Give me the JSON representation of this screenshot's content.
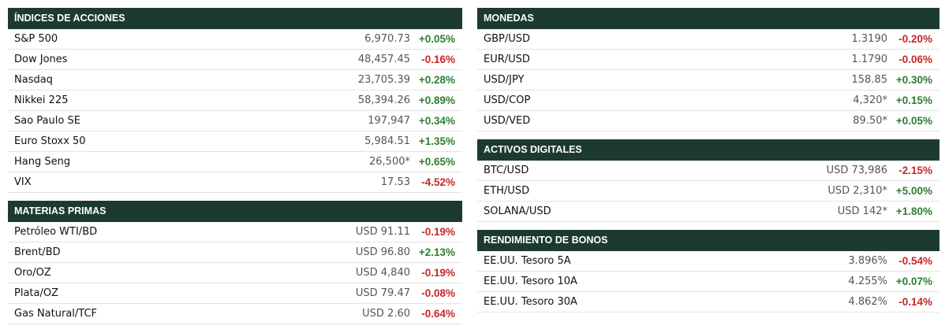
{
  "colors": {
    "header_bg": "#1c3a30",
    "positive": "#2e7d32",
    "negative": "#c62828"
  },
  "left": [
    {
      "title": "ÍNDICES DE ACCIONES",
      "rows": [
        {
          "name": "S&P 500",
          "value": "6,970.73",
          "change": "+0.05%",
          "dir": "up"
        },
        {
          "name": "Dow Jones",
          "value": "48,457.45",
          "change": "-0.16%",
          "dir": "down"
        },
        {
          "name": "Nasdaq",
          "value": "23,705.39",
          "change": "+0.28%",
          "dir": "up"
        },
        {
          "name": "Nikkei 225",
          "value": "58,394.26",
          "change": "+0.89%",
          "dir": "up"
        },
        {
          "name": "Sao Paulo SE",
          "value": "197,947",
          "change": "+0.34%",
          "dir": "up"
        },
        {
          "name": "Euro Stoxx 50",
          "value": "5,984.51",
          "change": "+1.35%",
          "dir": "up"
        },
        {
          "name": "Hang Seng",
          "value": "26,500*",
          "change": "+0.65%",
          "dir": "up"
        },
        {
          "name": "VIX",
          "value": "17.53",
          "change": "-4.52%",
          "dir": "down"
        }
      ]
    },
    {
      "title": "MATERIAS PRIMAS",
      "rows": [
        {
          "name": "Petróleo WTI/BD",
          "value": "USD 91.11",
          "change": "-0.19%",
          "dir": "down"
        },
        {
          "name": "Brent/BD",
          "value": "USD 96.80",
          "change": "+2.13%",
          "dir": "up"
        },
        {
          "name": "Oro/OZ",
          "value": "USD 4,840",
          "change": "-0.19%",
          "dir": "down"
        },
        {
          "name": "Plata/OZ",
          "value": "USD 79.47",
          "change": "-0.08%",
          "dir": "down"
        },
        {
          "name": "Gas Natural/TCF",
          "value": "USD 2.60",
          "change": "-0.64%",
          "dir": "down"
        }
      ]
    }
  ],
  "right": [
    {
      "title": "MONEDAS",
      "rows": [
        {
          "name": "GBP/USD",
          "value": "1.3190",
          "change": "-0.20%",
          "dir": "down"
        },
        {
          "name": "EUR/USD",
          "value": "1.1790",
          "change": "-0.06%",
          "dir": "down"
        },
        {
          "name": "USD/JPY",
          "value": "158.85",
          "change": "+0.30%",
          "dir": "up"
        },
        {
          "name": "USD/COP",
          "value": "4,320*",
          "change": "+0.15%",
          "dir": "up"
        },
        {
          "name": "USD/VED",
          "value": "89.50*",
          "change": "+0.05%",
          "dir": "up"
        }
      ]
    },
    {
      "title": "ACTIVOS DIGITALES",
      "rows": [
        {
          "name": "BTC/USD",
          "value": "USD 73,986",
          "change": "-2.15%",
          "dir": "down"
        },
        {
          "name": "ETH/USD",
          "value": "USD 2,310*",
          "change": "+5.00%",
          "dir": "up"
        },
        {
          "name": "SOLANA/USD",
          "value": "USD 142*",
          "change": "+1.80%",
          "dir": "up"
        }
      ]
    },
    {
      "title": "RENDIMIENTO DE BONOS",
      "rows": [
        {
          "name": "EE.UU. Tesoro 5A",
          "value": "3.896%",
          "change": "-0.54%",
          "dir": "down"
        },
        {
          "name": "EE.UU. Tesoro 10A",
          "value": "4.255%",
          "change": "+0.07%",
          "dir": "up"
        },
        {
          "name": "EE.UU. Tesoro 30A",
          "value": "4.862%",
          "change": "-0.14%",
          "dir": "down"
        }
      ]
    }
  ]
}
